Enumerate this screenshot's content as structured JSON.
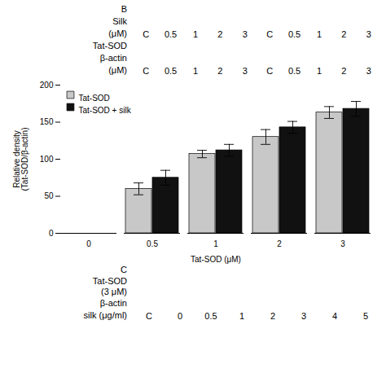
{
  "chart_data": {
    "type": "bar",
    "categories": [
      "0",
      "0.5",
      "1",
      "2",
      "3"
    ],
    "series": [
      {
        "name": "Tat-SOD",
        "color": "#c8c8c8",
        "values": [
          0,
          60,
          107,
          130,
          163
        ],
        "errors": [
          0,
          8,
          5,
          10,
          8
        ]
      },
      {
        "name": "Tat-SOD + silk",
        "color": "#111111",
        "values": [
          0,
          75,
          112,
          143,
          168
        ],
        "errors": [
          0,
          10,
          8,
          8,
          10
        ]
      }
    ],
    "xlabel": "Tat-SOD (μM)",
    "ylabel": "Relative density\n(Tat-SOD/β-actin)",
    "ylim": [
      0,
      200
    ],
    "yticks": [
      0,
      50,
      100,
      150,
      200
    ],
    "grid": false,
    "legend": "upper left",
    "annotations": [
      [
        "B"
      ],
      [
        "Silk"
      ],
      [
        "(μM)",
        "C",
        "0.5",
        "1",
        "2",
        "3",
        "C",
        "0.5",
        "1",
        "2",
        "3"
      ],
      [
        "Tat-SOD"
      ],
      [
        "β-actin"
      ],
      [
        "(μM)",
        "C",
        "0.5",
        "1",
        "2",
        "3",
        "C",
        "0.5",
        "1",
        "2",
        "3"
      ],
      [
        "C"
      ],
      [
        "Tat-SOD\n(3 μM)"
      ],
      [
        "β-actin"
      ],
      [
        "silk (μg/ml)",
        "C",
        "0",
        "0.5",
        "1",
        "2",
        "3",
        "4",
        "5"
      ]
    ]
  }
}
